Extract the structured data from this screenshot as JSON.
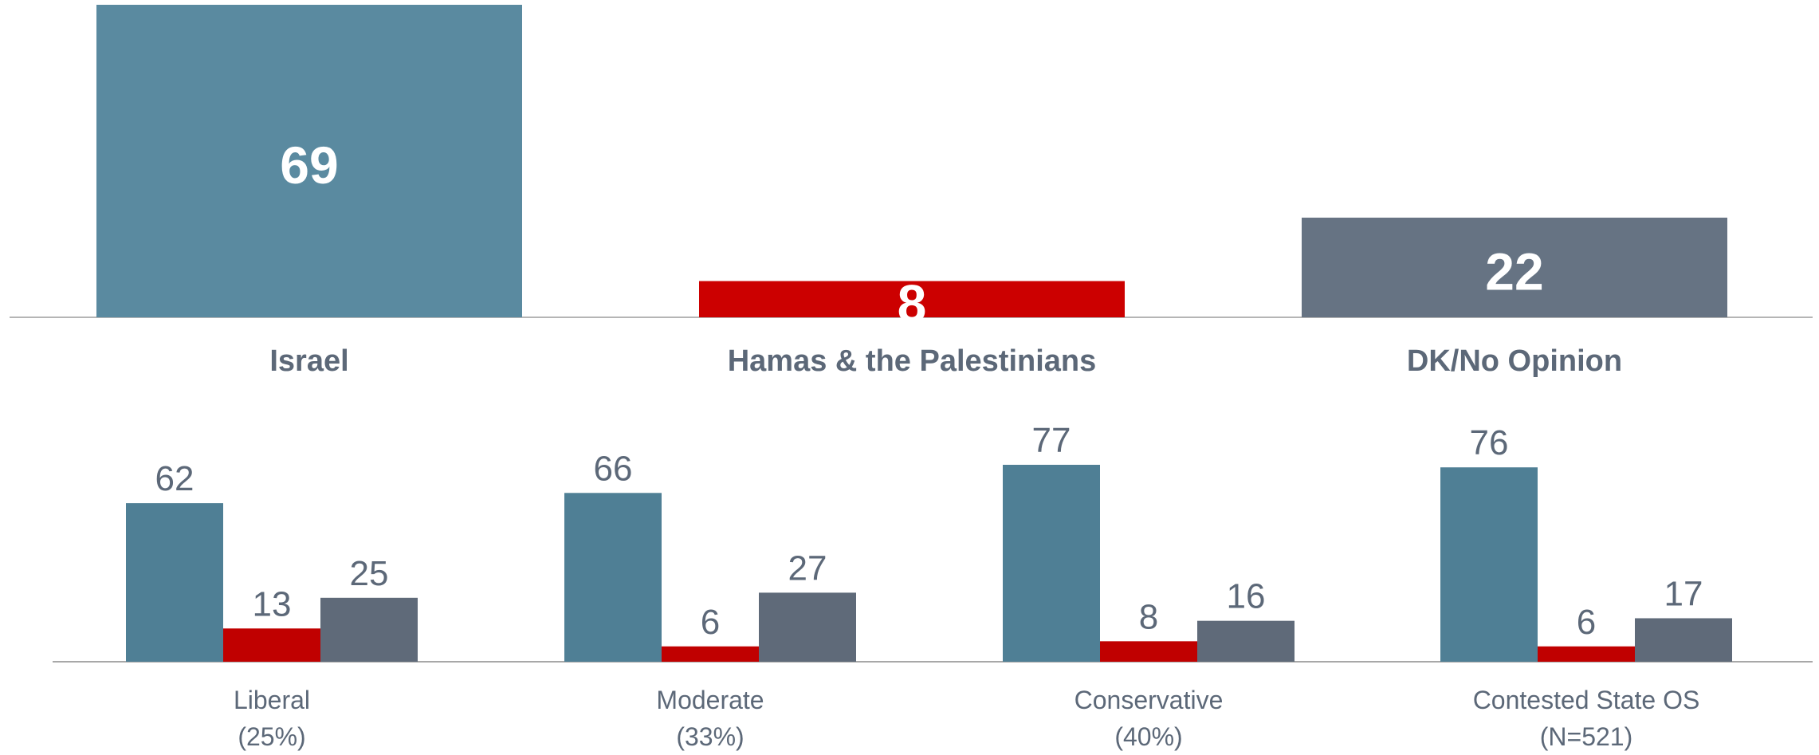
{
  "chart_data": [
    {
      "type": "bar",
      "categories": [
        "Israel",
        "Hamas & the Palestinians",
        "DK/No Opinion"
      ],
      "values": [
        69,
        8,
        22
      ],
      "colors": [
        "#5a8aa0",
        "#cc0000",
        "#667383"
      ],
      "data_labels": [
        "69",
        "8",
        "22"
      ],
      "title": "",
      "xlabel": "",
      "ylabel": "",
      "ylim": [
        0,
        69
      ],
      "grid": false,
      "legend": "none"
    },
    {
      "type": "bar",
      "categories": [
        "Liberal",
        "Moderate",
        "Conservative",
        "Contested State OS"
      ],
      "category_sublabels": [
        "(25%)",
        "(33%)",
        "(40%)",
        "(N=521)"
      ],
      "series": [
        {
          "values": [
            62,
            66,
            77,
            76
          ],
          "color": "#4f7f95"
        },
        {
          "values": [
            13,
            6,
            8,
            6
          ],
          "color": "#c00000"
        },
        {
          "values": [
            25,
            27,
            16,
            17
          ],
          "color": "#5f6a79"
        }
      ],
      "title": "",
      "xlabel": "",
      "ylabel": "",
      "ylim": [
        0,
        77
      ],
      "grid": false,
      "legend": "none"
    }
  ]
}
